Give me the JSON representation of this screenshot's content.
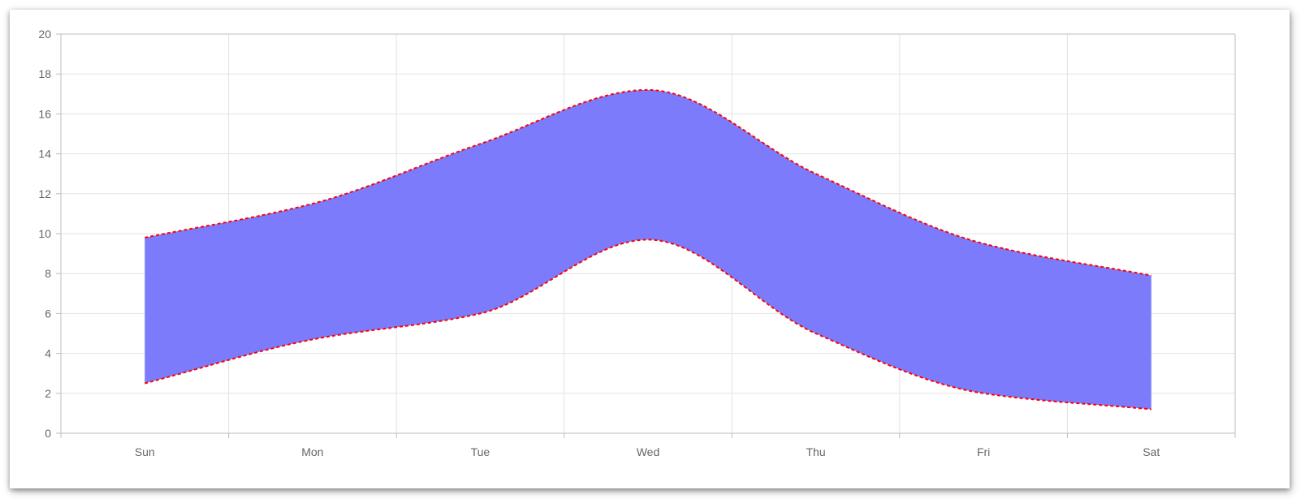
{
  "chart_data": {
    "type": "area",
    "title": "",
    "xlabel": "",
    "ylabel": "",
    "categories": [
      "Sun",
      "Mon",
      "Tue",
      "Wed",
      "Thu",
      "Fri",
      "Sat"
    ],
    "ylim": [
      0,
      20
    ],
    "yticks": [
      0,
      2,
      4,
      6,
      8,
      10,
      12,
      14,
      16,
      18,
      20
    ],
    "grid": true,
    "legend": "none",
    "series": [
      {
        "values": [
          2.5,
          4.7,
          6.0,
          9.7,
          5.0,
          2.0,
          1.2
        ]
      },
      {
        "values": [
          9.8,
          11.5,
          14.5,
          17.2,
          13.0,
          9.5,
          7.9
        ]
      }
    ],
    "colors": {
      "fill": "#7b7bfc",
      "border": "#ff0000",
      "grid": "#e3e3e3",
      "axis": "#bdbdbd",
      "tick_text": "#666666"
    }
  }
}
